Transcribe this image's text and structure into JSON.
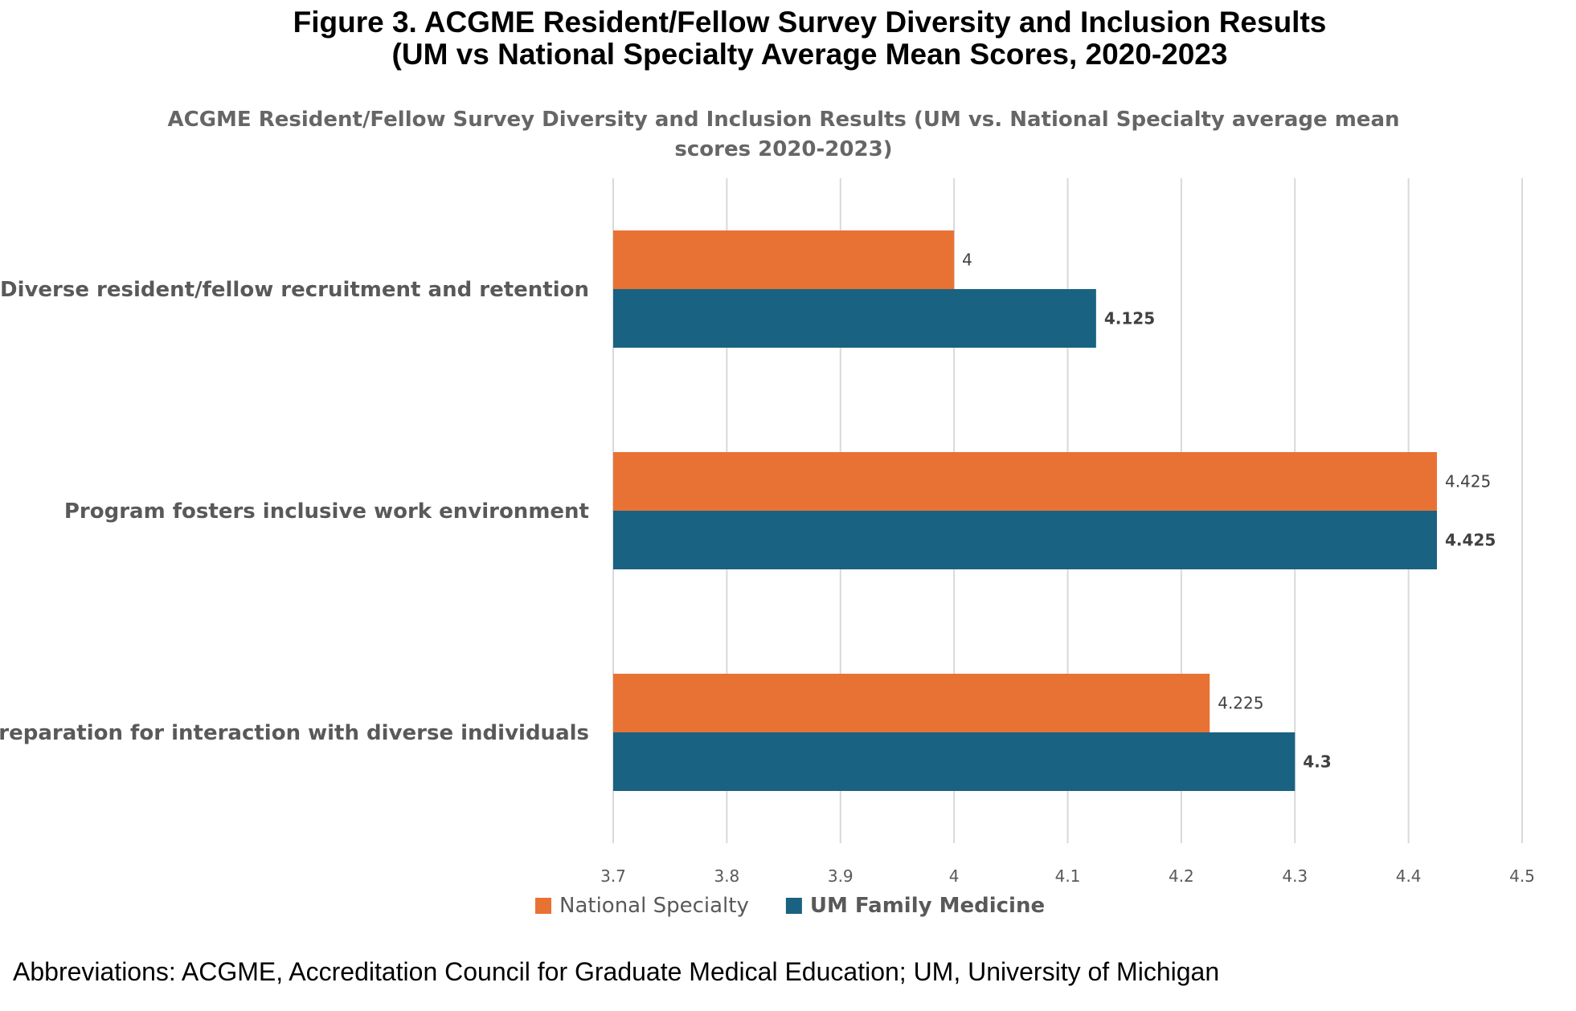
{
  "figure": {
    "title_line1": "Figure 3. ACGME Resident/Fellow Survey Diversity and Inclusion Results",
    "title_line2": "(UM vs National Specialty Average Mean Scores, 2020-2023",
    "footnote": "Abbreviations: ACGME, Accreditation Council for Graduate Medical Education; UM, University of Michigan"
  },
  "chart_data": {
    "type": "bar",
    "orientation": "horizontal",
    "title_line1": "ACGME Resident/Fellow Survey Diversity and Inclusion Results (UM vs. National Specialty average mean",
    "title_line2": "scores 2020-2023)",
    "categories": [
      "Diverse resident/fellow recruitment and retention",
      "Program fosters inclusive work environment",
      "Preparation for interaction with diverse individuals"
    ],
    "series": [
      {
        "name": "National Specialty",
        "color": "#E87234",
        "values": [
          4,
          4.425,
          4.225
        ],
        "labels": [
          "4",
          "4.425",
          "4.225"
        ]
      },
      {
        "name": "UM Family Medicine",
        "color": "#196281",
        "values": [
          4.125,
          4.425,
          4.3
        ],
        "labels": [
          "4.125",
          "4.425",
          "4.3"
        ]
      }
    ],
    "xlim": [
      3.7,
      4.5
    ],
    "xticks": [
      "3.7",
      "3.8",
      "3.9",
      "4",
      "4.1",
      "4.2",
      "4.3",
      "4.4",
      "4.5"
    ],
    "grid": "vertical",
    "legend_position": "bottom"
  }
}
